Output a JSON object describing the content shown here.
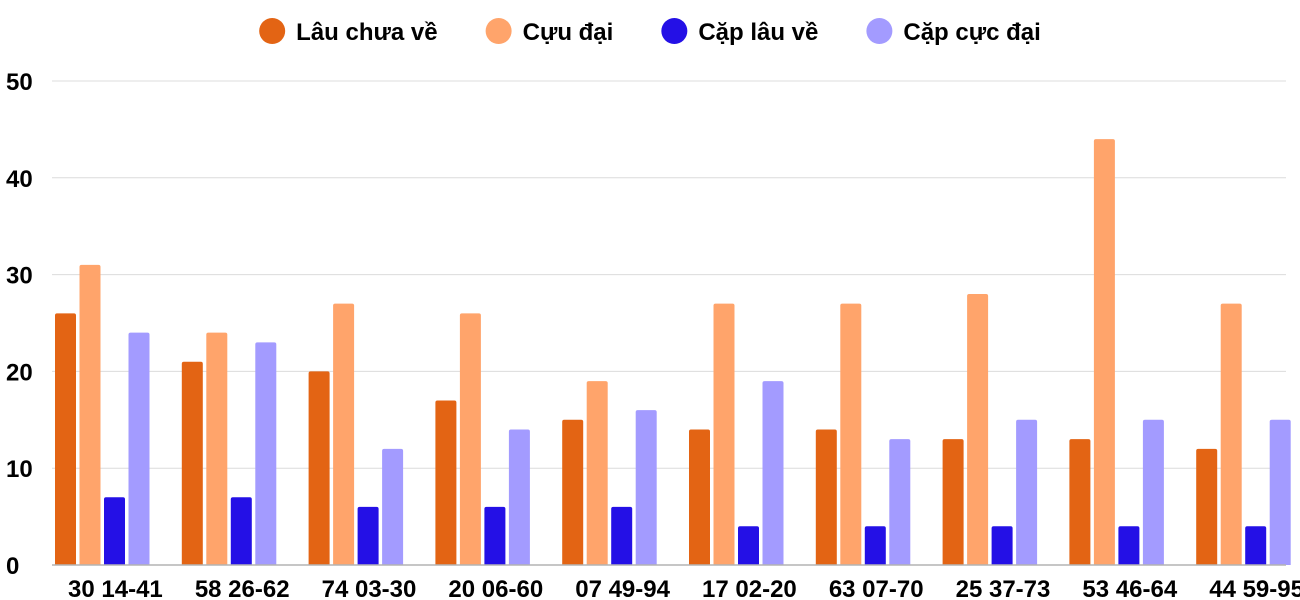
{
  "chart_data": {
    "type": "bar",
    "title": "",
    "xlabel": "",
    "ylabel": "",
    "categories": [
      "30 14-41",
      "58 26-62",
      "74 03-30",
      "20 06-60",
      "07 49-94",
      "17 02-20",
      "63 07-70",
      "25 37-73",
      "53 46-64",
      "44 59-95"
    ],
    "series": [
      {
        "name": "Lâu chưa về",
        "color": "#e36414",
        "values": [
          26,
          21,
          20,
          17,
          15,
          14,
          14,
          13,
          13,
          12
        ]
      },
      {
        "name": "Cựu đại",
        "color": "#ffa46b",
        "values": [
          31,
          24,
          27,
          26,
          19,
          27,
          27,
          28,
          44,
          27
        ]
      },
      {
        "name": "Cặp lâu về",
        "color": "#2410e6",
        "values": [
          7,
          7,
          6,
          6,
          6,
          4,
          4,
          4,
          4,
          4
        ]
      },
      {
        "name": "Cặp cực đại",
        "color": "#a39bff",
        "values": [
          24,
          23,
          12,
          14,
          16,
          19,
          13,
          15,
          15,
          15
        ]
      }
    ],
    "ylim": [
      0,
      50
    ],
    "yticks": [
      0,
      10,
      20,
      30,
      40,
      50
    ],
    "grid": true,
    "legend_position": "top-center"
  }
}
